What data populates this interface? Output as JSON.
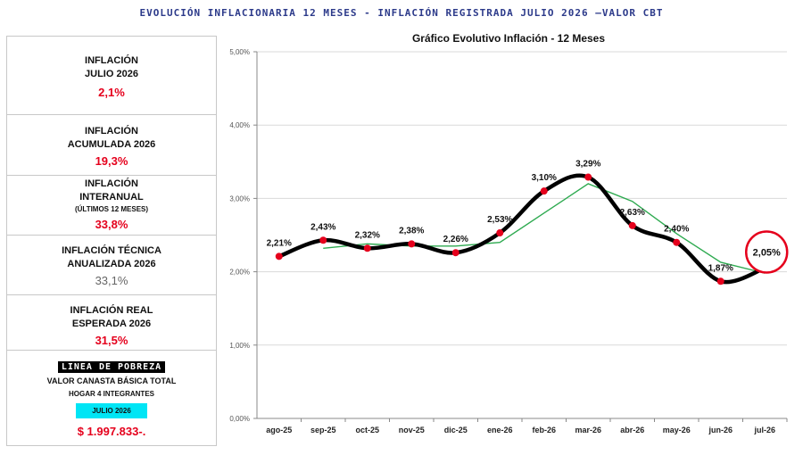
{
  "header": {
    "title": "EVOLUCIÓN INFLACIONARIA 12 MESES - INFLACIÓN REGISTRADA JULIO 2026 –VALOR CBT"
  },
  "panel": {
    "monthly": {
      "label1": "INFLACIÓN",
      "label2": "JULIO 2026",
      "value": "2,1%"
    },
    "ytd": {
      "label1": "INFLACIÓN",
      "label2": "ACUMULADA 2026",
      "value": "19,3%"
    },
    "yoy": {
      "label1": "INFLACIÓN",
      "label2": "INTERANUAL",
      "sub": "(ÚLTIMOS 12 MESES)",
      "value": "33,8%"
    },
    "technical": {
      "label1": "INFLACIÓN TÉCNICA",
      "label2": "ANUALIZADA 2026",
      "value": "33,1%"
    },
    "real": {
      "label1": "INFLACIÓN REAL",
      "label2": "ESPERADA 2026",
      "value": "31,5%"
    },
    "poverty": {
      "title": "LINEA DE POBREZA",
      "label1": "VALOR CANASTA BÁSICA TOTAL",
      "label2": "HOGAR 4 INTEGRANTES",
      "month": "JULIO 2026",
      "value": "$ 1.997.833-."
    }
  },
  "colors": {
    "accent_red": "#e5001c",
    "line": "#000000",
    "trend": "#2eaa50",
    "badge": "#00e5f5"
  },
  "chart_data": {
    "type": "line",
    "title": "Gráfico Evolutivo Inflación - 12 Meses",
    "categories": [
      "ago-25",
      "sep-25",
      "oct-25",
      "nov-25",
      "dic-25",
      "ene-26",
      "feb-26",
      "mar-26",
      "abr-26",
      "may-26",
      "jun-26",
      "jul-26"
    ],
    "series": [
      {
        "values": [
          2.21,
          2.43,
          2.32,
          2.38,
          2.26,
          2.53,
          3.1,
          3.29,
          2.63,
          2.4,
          1.87,
          2.05
        ],
        "labels": [
          "2,21%",
          "2,43%",
          "2,32%",
          "2,38%",
          "2,26%",
          "2,53%",
          "3,10%",
          "3,29%",
          "2,63%",
          "2,40%",
          "1,87%",
          "2,05%"
        ]
      },
      {
        "trendline": true,
        "values": [
          null,
          2.32,
          2.38,
          2.35,
          2.35,
          2.4,
          2.8,
          3.2,
          2.96,
          2.52,
          2.13,
          1.98
        ]
      }
    ],
    "ylim": [
      0,
      5
    ],
    "yticks": [
      "0,00%",
      "1,00%",
      "2,00%",
      "3,00%",
      "4,00%",
      "5,00%"
    ],
    "highlight_label": "2,05%",
    "grid": true
  }
}
